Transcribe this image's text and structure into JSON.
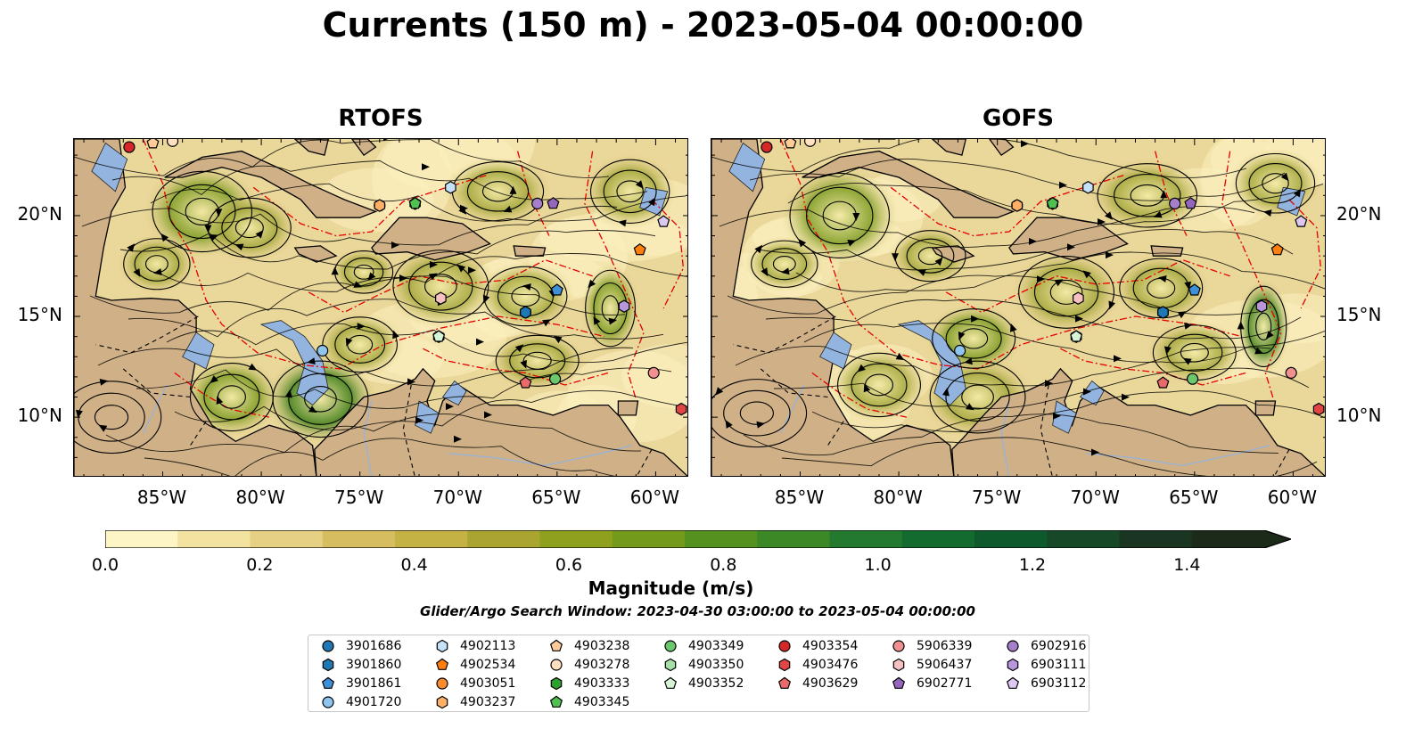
{
  "title": "Currents (150 m) - 2023-05-04 00:00:00",
  "panels": [
    {
      "title": "RTOFS"
    },
    {
      "title": "GOFS"
    }
  ],
  "axes": {
    "lon_ticks": [
      "85°W",
      "80°W",
      "75°W",
      "70°W",
      "65°W",
      "60°W"
    ],
    "lat_ticks": [
      "20°N",
      "15°N",
      "10°N"
    ],
    "lon_range": [
      -89.5,
      -58.3
    ],
    "lat_range": [
      7.0,
      23.8
    ]
  },
  "colorbar": {
    "label": "Magnitude (m/s)",
    "ticks": [
      "0.0",
      "0.2",
      "0.4",
      "0.6",
      "0.8",
      "1.0",
      "1.2",
      "1.4"
    ],
    "range": [
      0.0,
      1.5
    ],
    "extend": "max",
    "colors": [
      "#fdf5c5",
      "#f2e3a0",
      "#e5d083",
      "#d6bd5f",
      "#c5b245",
      "#aaa531",
      "#8fa01e",
      "#739a1a",
      "#55911e",
      "#3c8726",
      "#237a2e",
      "#136b30",
      "#0e5a2c",
      "#174828",
      "#1a3522",
      "#1c2a19"
    ]
  },
  "search_window": "Glider/Argo Search Window: 2023-04-30 03:00:00 to 2023-05-04 00:00:00",
  "floats": [
    {
      "id": "3901686",
      "marker": "circle",
      "color": "#1f77b4",
      "lon": -66.6,
      "lat": 15.2
    },
    {
      "id": "3901860",
      "marker": "hexagon",
      "color": "#1f77b4",
      "lon": -66.6,
      "lat": 15.2
    },
    {
      "id": "3901861",
      "marker": "pentagon",
      "color": "#3d8fd6",
      "lon": -65.0,
      "lat": 16.3
    },
    {
      "id": "4901720",
      "marker": "circle",
      "color": "#8fc4ee",
      "lon": -76.9,
      "lat": 13.3
    },
    {
      "id": "4902113",
      "marker": "hexagon",
      "color": "#c6e2fa",
      "lon": -70.4,
      "lat": 21.4
    },
    {
      "id": "4902534",
      "marker": "pentagon",
      "color": "#ff7f0e",
      "lon": -60.8,
      "lat": 18.3
    },
    {
      "id": "4903051",
      "marker": "circle",
      "color": "#ff8c2e",
      "lon": -74.0,
      "lat": 20.5
    },
    {
      "id": "4903237",
      "marker": "hexagon",
      "color": "#ffb066",
      "lon": -74.0,
      "lat": 20.5
    },
    {
      "id": "4903238",
      "marker": "pentagon",
      "color": "#ffcc99",
      "lon": -85.5,
      "lat": 23.6
    },
    {
      "id": "4903278",
      "marker": "circle",
      "color": "#ffe0c0",
      "lon": -84.5,
      "lat": 23.7
    },
    {
      "id": "4903333",
      "marker": "hexagon",
      "color": "#2ca02c",
      "lon": -72.2,
      "lat": 20.6
    },
    {
      "id": "4903345",
      "marker": "pentagon",
      "color": "#50c050",
      "lon": -72.2,
      "lat": 20.6
    },
    {
      "id": "4903349",
      "marker": "circle",
      "color": "#6cc86c",
      "lon": -65.1,
      "lat": 11.9
    },
    {
      "id": "4903350",
      "marker": "hexagon",
      "color": "#a6e0a6",
      "lon": -71.0,
      "lat": 14.0
    },
    {
      "id": "4903352",
      "marker": "pentagon",
      "color": "#d6f5d6",
      "lon": -71.0,
      "lat": 14.0
    },
    {
      "id": "4903354",
      "marker": "circle",
      "color": "#d62728",
      "lon": -86.7,
      "lat": 23.4
    },
    {
      "id": "4903476",
      "marker": "hexagon",
      "color": "#e04444",
      "lon": -58.7,
      "lat": 10.4
    },
    {
      "id": "4903629",
      "marker": "pentagon",
      "color": "#e86a6a",
      "lon": -66.6,
      "lat": 11.7
    },
    {
      "id": "5906339",
      "marker": "circle",
      "color": "#f09090",
      "lon": -60.1,
      "lat": 12.2
    },
    {
      "id": "5906437",
      "marker": "hexagon",
      "color": "#f7c1c1",
      "lon": -70.9,
      "lat": 15.9
    },
    {
      "id": "6902771",
      "marker": "pentagon",
      "color": "#9467bd",
      "lon": -65.2,
      "lat": 20.6
    },
    {
      "id": "6902916",
      "marker": "circle",
      "color": "#a67fcc",
      "lon": -66.0,
      "lat": 20.6
    },
    {
      "id": "6903111",
      "marker": "hexagon",
      "color": "#b995db",
      "lon": -61.6,
      "lat": 15.5
    },
    {
      "id": "6903112",
      "marker": "pentagon",
      "color": "#dcc8f0",
      "lon": -59.6,
      "lat": 19.7
    }
  ]
}
